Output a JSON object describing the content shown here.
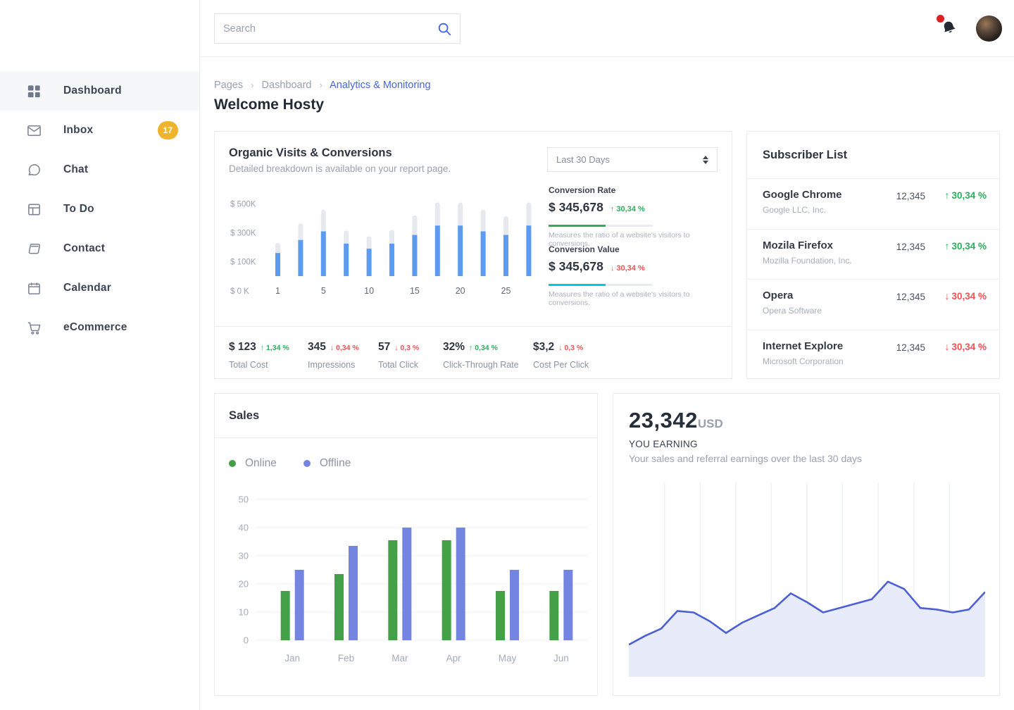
{
  "colors": {
    "accent": "#4663e6",
    "positive": "#2bad5b",
    "negative": "#ed5253",
    "badge": "#f0b32e",
    "progress_rate": "#2bad5b",
    "progress_value": "#00c9e8"
  },
  "sidebar": {
    "items": [
      {
        "label": "Dashboard",
        "icon": "grid-icon",
        "active": true
      },
      {
        "label": "Inbox",
        "icon": "mail-icon",
        "badge": "17"
      },
      {
        "label": "Chat",
        "icon": "chat-icon"
      },
      {
        "label": "To Do",
        "icon": "todo-icon"
      },
      {
        "label": "Contact",
        "icon": "contact-icon"
      },
      {
        "label": "Calendar",
        "icon": "calendar-icon"
      },
      {
        "label": "eCommerce",
        "icon": "cart-icon"
      }
    ]
  },
  "topbar": {
    "search_placeholder": "Search"
  },
  "breadcrumb": {
    "items": [
      "Pages",
      "Dashboard"
    ],
    "current": "Analytics & Monitoring"
  },
  "page_title": "Welcome Hosty",
  "organic": {
    "title": "Organic Visits & Conversions",
    "subtitle": "Detailed breakdown is available on your report page.",
    "period_select": "Last 30 Days",
    "conversion_rate": {
      "label": "Conversion Rate",
      "value": "$ 345,678",
      "delta": "30,34 %",
      "direction": "up",
      "progress_pct": 55,
      "caption": "Measures the ratio of a website's visitors to conversions."
    },
    "conversion_value": {
      "label": "Conversion Value",
      "value": "$ 345,678",
      "delta": "30,34 %",
      "direction": "down",
      "progress_pct": 55,
      "caption": "Measures the ratio of a website's visitors to conversions."
    },
    "stats": [
      {
        "value": "$ 123",
        "delta": "1,34 %",
        "direction": "up",
        "label": "Total Cost"
      },
      {
        "value": "345",
        "delta": "0,34 %",
        "direction": "down",
        "label": "Impressions"
      },
      {
        "value": "57",
        "delta": "0,3 %",
        "direction": "down",
        "label": "Total Click"
      },
      {
        "value": "32%",
        "delta": "0,34 %",
        "direction": "up",
        "label": "Click-Through Rate"
      },
      {
        "value": "$3,2",
        "delta": "0,3 %",
        "direction": "down",
        "label": "Cost Per Click"
      }
    ]
  },
  "subscribers": {
    "title": "Subscriber List",
    "rows": [
      {
        "name": "Google Chrome",
        "company": "Google LLC, Inc.",
        "count": "12,345",
        "delta": "30,34 %",
        "direction": "up"
      },
      {
        "name": "Mozila Firefox",
        "company": "Mozilla Foundation, Inc.",
        "count": "12,345",
        "delta": "30,34 %",
        "direction": "up"
      },
      {
        "name": "Opera",
        "company": "Opera Software",
        "count": "12,345",
        "delta": "30,34 %",
        "direction": "down"
      },
      {
        "name": "Internet Explore",
        "company": "Microsoft Corporation",
        "count": "12,345",
        "delta": "30,34 %",
        "direction": "down"
      }
    ]
  },
  "sales": {
    "title": "Sales"
  },
  "earnings": {
    "amount": "23,342",
    "currency": "USD",
    "label": "YOU EARNING",
    "caption": "Your sales and referral earnings over the last 30 days"
  },
  "chart_data": [
    {
      "id": "organic-visits",
      "type": "bar",
      "title": "Organic Visits & Conversions",
      "x_tick_labels": [
        "1",
        "5",
        "10",
        "15",
        "20",
        "25"
      ],
      "x_tick_bar_indexes": [
        0,
        2,
        4,
        6,
        8,
        10
      ],
      "series": [
        {
          "name": "total-visits",
          "color": "#e6e9ee",
          "values": [
            230,
            365,
            460,
            315,
            275,
            320,
            420,
            510,
            510,
            460,
            415,
            510
          ]
        },
        {
          "name": "conversions",
          "color": "#5b9bf0",
          "values": [
            160,
            250,
            310,
            225,
            190,
            225,
            285,
            350,
            350,
            310,
            285,
            350
          ]
        }
      ],
      "ylabel": "$K",
      "ylim": [
        0,
        550
      ],
      "y_ticks": [
        {
          "v": 0,
          "label": "$ 0 K"
        },
        {
          "v": 100,
          "label": "$ 100K"
        },
        {
          "v": 300,
          "label": "$ 300K"
        },
        {
          "v": 500,
          "label": "$ 500K"
        }
      ],
      "grid": false
    },
    {
      "id": "sales",
      "type": "bar",
      "categories": [
        "Jan",
        "Feb",
        "Mar",
        "Apr",
        "May",
        "Jun"
      ],
      "series": [
        {
          "name": "Online",
          "color": "#43a047",
          "values": [
            17.5,
            23.5,
            35.5,
            35.5,
            17.5,
            17.5
          ]
        },
        {
          "name": "Offline",
          "color": "#7385e0",
          "values": [
            25,
            33.5,
            40,
            40,
            25,
            25
          ]
        }
      ],
      "ylim": [
        0,
        50
      ],
      "y_ticks": [
        0,
        10,
        20,
        30,
        40,
        50
      ],
      "grid": true,
      "legend_position": "top"
    },
    {
      "id": "earnings",
      "type": "area",
      "line_color": "#4c5fd7",
      "fill_color": "#e8ecfa",
      "grid": "vertical",
      "ylim": [
        0,
        100
      ],
      "values": [
        22,
        28,
        33,
        45,
        44,
        38,
        30,
        37,
        42,
        47,
        57,
        51,
        44,
        47,
        50,
        53,
        65,
        60,
        47,
        46,
        44,
        46,
        58
      ]
    }
  ]
}
